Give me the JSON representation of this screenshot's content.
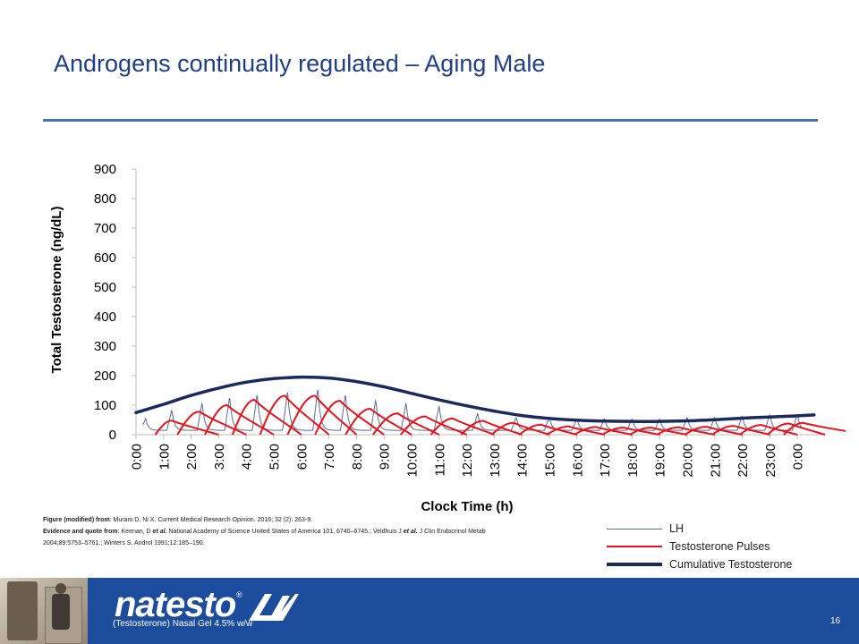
{
  "slide": {
    "title": "Androgens continually regulated – Aging Male",
    "page_number": "16"
  },
  "citation": {
    "line1_bold": "Figure (modified) from",
    "line1_text": ": Muram D, Ni X. Current Medical Research Opinion. 2016; 32 (2): 263-9.",
    "line2_bold": "Evidence and quote from",
    "line2_text_a": ": Keenan, D ",
    "line2_etal": "et al.",
    "line2_text_b": " National Academy of Science United States of America 101, 6740–6745.; Veldhuis J ",
    "line2_etal2": "et al.",
    "line2_text_c": " J Clin Endocrinol Metab",
    "line3_text": "2004;89:5753–5761.; Winters S. Androl 1991;12:185–190."
  },
  "footer": {
    "brand_name": "natesto",
    "brand_registered": "®",
    "brand_subtitle": "(Testosterone) Nasal Gel 4.5% w/w"
  },
  "colors": {
    "title": "#1f3f86",
    "title_rule": "#4b6fa8",
    "footer": "#1c4c9c",
    "lh": "#5a6b96",
    "pulses": "#e8141c",
    "cumulative": "#1b2a5e"
  },
  "chart_data": {
    "type": "line",
    "title": "",
    "xlabel": "Clock Time (h)",
    "ylabel": "Total Testosterone  (ng/dL)",
    "ylim": [
      0,
      900
    ],
    "yticks": [
      "0",
      "100",
      "200",
      "300",
      "400",
      "500",
      "600",
      "700",
      "800",
      "900"
    ],
    "xticks": [
      "0:00",
      "1:00",
      "2:00",
      "3:00",
      "4:00",
      "5:00",
      "6:00",
      "7:00",
      "8:00",
      "9:00",
      "10:00",
      "11:00",
      "12:00",
      "13:00",
      "14:00",
      "15:00",
      "16:00",
      "17:00",
      "18:00",
      "19:00",
      "20:00",
      "21:00",
      "22:00",
      "23:00",
      "0:00"
    ],
    "x_hours": [
      0,
      1,
      2,
      3,
      4,
      5,
      6,
      7,
      8,
      9,
      10,
      11,
      12,
      13,
      14,
      15,
      16,
      17,
      18,
      19,
      20,
      21,
      22,
      23,
      24
    ],
    "grid": false,
    "legend_position": "bottom-right",
    "series": [
      {
        "name": "LH",
        "style": "thin-line",
        "baseline": 15,
        "pulses": [
          {
            "t": 0.35,
            "peak": 55
          },
          {
            "t": 1.3,
            "peak": 85
          },
          {
            "t": 2.4,
            "peak": 110
          },
          {
            "t": 3.4,
            "peak": 130
          },
          {
            "t": 4.4,
            "peak": 140
          },
          {
            "t": 5.5,
            "peak": 150
          },
          {
            "t": 6.6,
            "peak": 160
          },
          {
            "t": 7.6,
            "peak": 140
          },
          {
            "t": 8.7,
            "peak": 120
          },
          {
            "t": 9.8,
            "peak": 110
          },
          {
            "t": 11.0,
            "peak": 100
          },
          {
            "t": 12.4,
            "peak": 75
          },
          {
            "t": 13.8,
            "peak": 60
          },
          {
            "t": 15.0,
            "peak": 60
          },
          {
            "t": 16.0,
            "peak": 55
          },
          {
            "t": 17.0,
            "peak": 55
          },
          {
            "t": 18.0,
            "peak": 55
          },
          {
            "t": 19.0,
            "peak": 55
          },
          {
            "t": 20.0,
            "peak": 60
          },
          {
            "t": 21.0,
            "peak": 60
          },
          {
            "t": 22.0,
            "peak": 65
          },
          {
            "t": 23.0,
            "peak": 70
          },
          {
            "t": 24.0,
            "peak": 70
          }
        ]
      },
      {
        "name": "Testosterone Pulses",
        "style": "thick-line",
        "pulses": [
          {
            "start": 0.7,
            "peak_t": 1.3,
            "peak": 48,
            "end": 3.0
          },
          {
            "start": 1.5,
            "peak_t": 2.3,
            "peak": 78,
            "end": 4.0
          },
          {
            "start": 2.5,
            "peak_t": 3.3,
            "peak": 100,
            "end": 5.0
          },
          {
            "start": 3.5,
            "peak_t": 4.3,
            "peak": 118,
            "end": 6.0
          },
          {
            "start": 4.5,
            "peak_t": 5.4,
            "peak": 132,
            "end": 7.0
          },
          {
            "start": 5.5,
            "peak_t": 6.5,
            "peak": 132,
            "end": 8.0
          },
          {
            "start": 6.5,
            "peak_t": 7.4,
            "peak": 115,
            "end": 9.0
          },
          {
            "start": 7.6,
            "peak_t": 8.5,
            "peak": 88,
            "end": 10.0
          },
          {
            "start": 8.6,
            "peak_t": 9.5,
            "peak": 72,
            "end": 11.0
          },
          {
            "start": 9.6,
            "peak_t": 10.5,
            "peak": 62,
            "end": 12.0
          },
          {
            "start": 10.7,
            "peak_t": 11.5,
            "peak": 55,
            "end": 13.0
          },
          {
            "start": 11.8,
            "peak_t": 12.6,
            "peak": 47,
            "end": 14.0
          },
          {
            "start": 12.9,
            "peak_t": 13.7,
            "peak": 40,
            "end": 15.0
          },
          {
            "start": 13.9,
            "peak_t": 14.7,
            "peak": 34,
            "end": 16.0
          },
          {
            "start": 14.9,
            "peak_t": 15.7,
            "peak": 28,
            "end": 17.0
          },
          {
            "start": 15.9,
            "peak_t": 16.7,
            "peak": 26,
            "end": 18.0
          },
          {
            "start": 16.9,
            "peak_t": 17.7,
            "peak": 24,
            "end": 19.0
          },
          {
            "start": 17.9,
            "peak_t": 18.7,
            "peak": 24,
            "end": 20.0
          },
          {
            "start": 18.9,
            "peak_t": 19.7,
            "peak": 25,
            "end": 21.0
          },
          {
            "start": 19.9,
            "peak_t": 20.7,
            "peak": 27,
            "end": 22.0
          },
          {
            "start": 20.9,
            "peak_t": 21.7,
            "peak": 30,
            "end": 23.0
          },
          {
            "start": 21.9,
            "peak_t": 22.7,
            "peak": 33,
            "end": 24.0
          },
          {
            "start": 22.9,
            "peak_t": 23.7,
            "peak": 38,
            "end": 25.0
          },
          {
            "start": 23.5,
            "peak_t": 24.2,
            "peak": 40,
            "end": 26.5
          }
        ]
      },
      {
        "name": "Cumulative Testosterone",
        "style": "bold-line",
        "x": [
          0,
          1,
          2,
          3,
          4,
          5,
          6,
          7,
          8,
          9,
          10,
          11,
          12,
          13,
          14,
          15,
          16,
          17,
          18,
          19,
          20,
          21,
          22,
          23,
          24,
          24.6
        ],
        "values": [
          75,
          103,
          133,
          158,
          178,
          190,
          195,
          192,
          180,
          162,
          140,
          118,
          98,
          80,
          65,
          55,
          49,
          46,
          45,
          45,
          47,
          51,
          56,
          60,
          64,
          67
        ]
      }
    ]
  }
}
